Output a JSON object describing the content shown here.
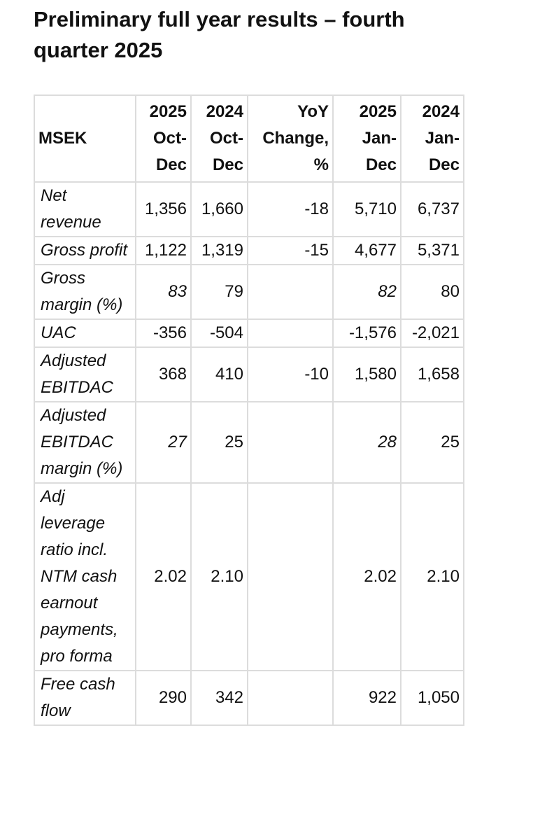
{
  "header": {
    "title": "Preliminary full year results – fourth quarter 2025"
  },
  "table": {
    "columns": [
      "MSEK",
      "2025 Oct-Dec",
      "2024 Oct-Dec",
      "YoY Change, %",
      "2025 Jan-Dec",
      "2024 Jan-Dec"
    ],
    "rows": [
      [
        "Net revenue",
        "1,356",
        "1,660",
        "-18",
        "5,710",
        "6,737"
      ],
      [
        "Gross profit",
        "1,122",
        "1,319",
        "-15",
        "4,677",
        "5,371"
      ],
      [
        "Gross margin (%)",
        "83",
        "79",
        null,
        "82",
        "80"
      ],
      [
        "UAC",
        "-356",
        "-504",
        null,
        "-1,576",
        "-2,021"
      ],
      [
        "Adjusted EBITDAC",
        "368",
        "410",
        "-10",
        "1,580",
        "1,658"
      ],
      [
        "Adjusted EBITDAC margin (%)",
        "27",
        "25",
        null,
        "28",
        "25"
      ],
      [
        "Adj leverage ratio incl. NTM cash earnout payments, pro forma",
        "2.02",
        "2.10",
        null,
        "2.02",
        "2.10"
      ],
      [
        "Free cash flow",
        "290",
        "342",
        null,
        "922",
        "1,050"
      ]
    ]
  }
}
